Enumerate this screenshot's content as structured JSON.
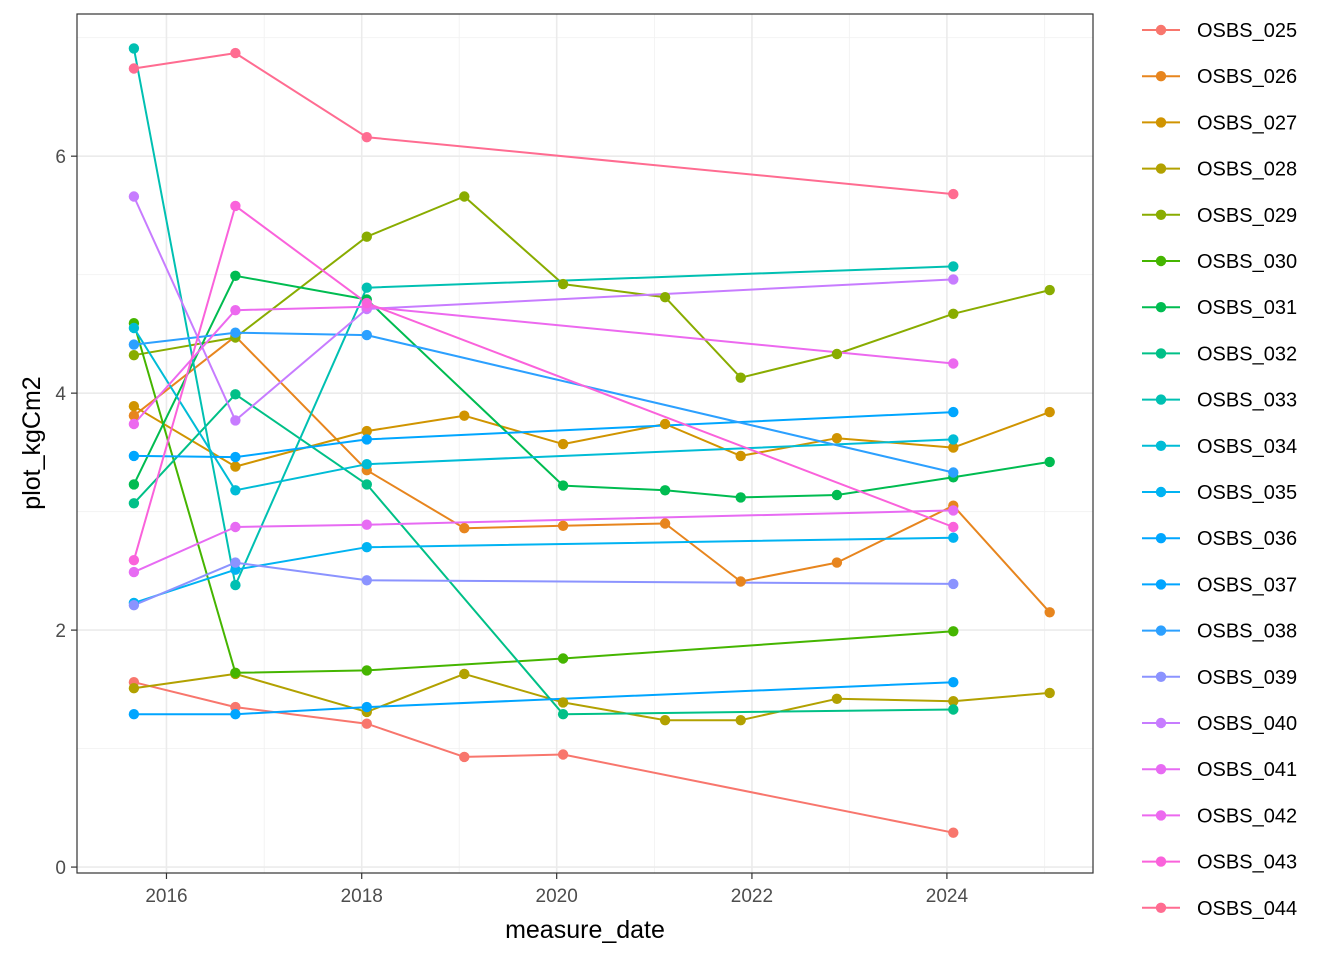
{
  "chart_data": {
    "type": "line",
    "title": "",
    "xlabel": "measure_date",
    "ylabel": "plot_kgCm2",
    "xlim": [
      "2015-01-31",
      "2025-07-01"
    ],
    "ylim": [
      -0.05,
      7.2
    ],
    "x_ticks": [
      "2016",
      "2018",
      "2020",
      "2022",
      "2024"
    ],
    "y_ticks": [
      "0",
      "2",
      "4",
      "6"
    ],
    "grid": true,
    "legend_position": "right",
    "series": [
      {
        "name": "OSBS_025",
        "color": "#F8766D",
        "points": [
          [
            "2015-09-01",
            1.56
          ],
          [
            "2016-09-15",
            1.35
          ],
          [
            "2018-01-20",
            1.21
          ],
          [
            "2019-01-20",
            0.93
          ],
          [
            "2020-01-25",
            0.95
          ],
          [
            "2024-01-25",
            0.29
          ]
        ]
      },
      {
        "name": "OSBS_026",
        "color": "#E7851E",
        "points": [
          [
            "2015-09-01",
            3.81
          ],
          [
            "2016-09-15",
            4.48
          ],
          [
            "2018-01-20",
            3.35
          ],
          [
            "2019-01-20",
            2.86
          ],
          [
            "2020-01-25",
            2.88
          ],
          [
            "2021-02-10",
            2.9
          ],
          [
            "2021-11-20",
            2.41
          ],
          [
            "2022-11-15",
            2.57
          ],
          [
            "2024-01-25",
            3.05
          ],
          [
            "2025-01-20",
            2.15
          ]
        ]
      },
      {
        "name": "OSBS_027",
        "color": "#D09400",
        "points": [
          [
            "2015-09-01",
            3.89
          ],
          [
            "2016-09-15",
            3.38
          ],
          [
            "2018-01-20",
            3.68
          ],
          [
            "2019-01-20",
            3.81
          ],
          [
            "2020-01-25",
            3.57
          ],
          [
            "2021-02-10",
            3.74
          ],
          [
            "2021-11-20",
            3.47
          ],
          [
            "2022-11-15",
            3.62
          ],
          [
            "2024-01-25",
            3.54
          ],
          [
            "2025-01-20",
            3.84
          ]
        ]
      },
      {
        "name": "OSBS_028",
        "color": "#B2A100",
        "points": [
          [
            "2015-09-01",
            1.51
          ],
          [
            "2016-09-15",
            1.63
          ],
          [
            "2018-01-20",
            1.31
          ],
          [
            "2019-01-20",
            1.63
          ],
          [
            "2020-01-25",
            1.39
          ],
          [
            "2021-02-10",
            1.24
          ],
          [
            "2021-11-20",
            1.24
          ],
          [
            "2022-11-15",
            1.42
          ],
          [
            "2024-01-25",
            1.4
          ],
          [
            "2025-01-20",
            1.47
          ]
        ]
      },
      {
        "name": "OSBS_029",
        "color": "#89AC00",
        "points": [
          [
            "2015-09-01",
            4.32
          ],
          [
            "2016-09-15",
            4.47
          ],
          [
            "2018-01-20",
            5.32
          ],
          [
            "2019-01-20",
            5.66
          ],
          [
            "2020-01-25",
            4.92
          ],
          [
            "2021-02-10",
            4.81
          ],
          [
            "2021-11-20",
            4.13
          ],
          [
            "2022-11-15",
            4.33
          ],
          [
            "2024-01-25",
            4.67
          ],
          [
            "2025-01-20",
            4.87
          ]
        ]
      },
      {
        "name": "OSBS_030",
        "color": "#45B500",
        "points": [
          [
            "2015-09-01",
            4.59
          ],
          [
            "2016-09-15",
            1.64
          ],
          [
            "2018-01-20",
            1.66
          ],
          [
            "2020-01-25",
            1.76
          ],
          [
            "2024-01-25",
            1.99
          ]
        ]
      },
      {
        "name": "OSBS_031",
        "color": "#00BC51",
        "points": [
          [
            "2015-09-01",
            3.23
          ],
          [
            "2016-09-15",
            4.99
          ],
          [
            "2018-01-20",
            4.79
          ],
          [
            "2020-01-25",
            3.22
          ],
          [
            "2021-02-10",
            3.18
          ],
          [
            "2021-11-20",
            3.12
          ],
          [
            "2022-11-15",
            3.14
          ],
          [
            "2024-01-25",
            3.29
          ],
          [
            "2025-01-20",
            3.42
          ]
        ]
      },
      {
        "name": "OSBS_032",
        "color": "#00C087",
        "points": [
          [
            "2015-09-01",
            3.07
          ],
          [
            "2016-09-15",
            3.99
          ],
          [
            "2018-01-20",
            3.23
          ],
          [
            "2020-01-25",
            1.29
          ],
          [
            "2024-01-25",
            1.33
          ]
        ]
      },
      {
        "name": "OSBS_033",
        "color": "#00C0B2",
        "points": [
          [
            "2015-09-01",
            6.91
          ],
          [
            "2016-09-15",
            2.38
          ],
          [
            "2018-01-20",
            4.89
          ],
          [
            "2024-01-25",
            5.07
          ]
        ]
      },
      {
        "name": "OSBS_034",
        "color": "#00BCD6",
        "points": [
          [
            "2015-09-01",
            4.55
          ],
          [
            "2016-09-15",
            3.18
          ],
          [
            "2018-01-20",
            3.4
          ],
          [
            "2024-01-25",
            3.61
          ]
        ]
      },
      {
        "name": "OSBS_035",
        "color": "#00B3F2",
        "points": [
          [
            "2015-09-01",
            2.23
          ],
          [
            "2016-09-15",
            2.51
          ],
          [
            "2018-01-20",
            2.7
          ],
          [
            "2024-01-25",
            2.78
          ]
        ]
      },
      {
        "name": "OSBS_036",
        "color": "#00A6FF",
        "points": [
          [
            "2015-09-01",
            3.47
          ],
          [
            "2016-09-15",
            3.46
          ],
          [
            "2018-01-20",
            3.61
          ],
          [
            "2024-01-25",
            3.84
          ]
        ]
      },
      {
        "name": "OSBS_037",
        "color": "#00A5FF",
        "points": [
          [
            "2015-09-01",
            1.29
          ],
          [
            "2016-09-15",
            1.29
          ],
          [
            "2018-01-20",
            1.35
          ],
          [
            "2024-01-25",
            1.56
          ]
        ]
      },
      {
        "name": "OSBS_038",
        "color": "#2CA0FF",
        "points": [
          [
            "2015-09-01",
            4.41
          ],
          [
            "2016-09-15",
            4.51
          ],
          [
            "2018-01-20",
            4.49
          ],
          [
            "2024-01-25",
            3.33
          ]
        ]
      },
      {
        "name": "OSBS_039",
        "color": "#8B93FF",
        "points": [
          [
            "2015-09-01",
            2.21
          ],
          [
            "2016-09-15",
            2.57
          ],
          [
            "2018-01-20",
            2.42
          ],
          [
            "2024-01-25",
            2.39
          ]
        ]
      },
      {
        "name": "OSBS_040",
        "color": "#C77CFF",
        "points": [
          [
            "2015-09-01",
            5.66
          ],
          [
            "2016-09-15",
            3.77
          ],
          [
            "2018-01-20",
            4.71
          ],
          [
            "2024-01-25",
            4.96
          ]
        ]
      },
      {
        "name": "OSBS_041",
        "color": "#E76BF3",
        "points": [
          [
            "2015-09-01",
            2.49
          ],
          [
            "2016-09-15",
            2.87
          ],
          [
            "2018-01-20",
            2.89
          ],
          [
            "2024-01-25",
            3.01
          ]
        ]
      },
      {
        "name": "OSBS_042",
        "color": "#EC69EF",
        "points": [
          [
            "2015-09-01",
            3.74
          ],
          [
            "2016-09-15",
            4.7
          ],
          [
            "2018-01-20",
            4.73
          ],
          [
            "2024-01-25",
            4.25
          ]
        ]
      },
      {
        "name": "OSBS_043",
        "color": "#FA62DB",
        "points": [
          [
            "2015-09-01",
            2.59
          ],
          [
            "2016-09-15",
            5.58
          ],
          [
            "2018-01-20",
            4.76
          ],
          [
            "2024-01-25",
            2.87
          ]
        ]
      },
      {
        "name": "OSBS_044",
        "color": "#FF6C91",
        "points": [
          [
            "2015-09-01",
            6.74
          ],
          [
            "2016-09-15",
            6.87
          ],
          [
            "2018-01-20",
            6.16
          ],
          [
            "2024-01-25",
            5.68
          ]
        ]
      }
    ]
  }
}
